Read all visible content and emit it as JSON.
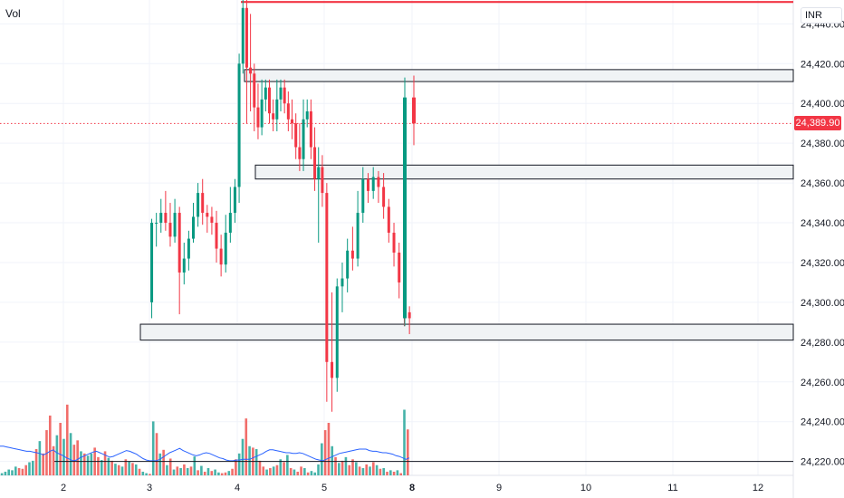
{
  "header": {
    "volume_label": "Vol",
    "currency_label": "INR"
  },
  "price_tag": {
    "value": "24,389.90",
    "color": "#f23645"
  },
  "colors": {
    "up": "#089981",
    "down": "#f23645",
    "vol_up": "#26a69a",
    "vol_down": "#ef5350",
    "ma": "#2962ff",
    "resistance": "#f23645",
    "zone_stroke": "#131722",
    "zone_fill": "#f0f3f5"
  },
  "chart_data": {
    "type": "candlestick",
    "x_tick_labels": [
      "2",
      "3",
      "4",
      "5",
      "8",
      "9",
      "10",
      "11",
      "12"
    ],
    "y_tick_labels": [
      "24,440.00",
      "24,420.00",
      "24,400.00",
      "24,380.00",
      "24,360.00",
      "24,340.00",
      "24,320.00",
      "24,300.00",
      "24,280.00",
      "24,260.00",
      "24,240.00",
      "24,220.00"
    ],
    "y_ticks": [
      24440,
      24420,
      24400,
      24380,
      24360,
      24340,
      24320,
      24300,
      24280,
      24260,
      24240,
      24220
    ],
    "ylim": [
      24213,
      24452
    ],
    "last_price": 24389.9,
    "resistance_level": 24451,
    "zones": [
      {
        "start_day": "4",
        "top": 24417,
        "bottom": 24411
      },
      {
        "start_day": "4",
        "top": 24369,
        "bottom": 24362
      },
      {
        "start_day": "3",
        "top": 24289,
        "bottom": 24281
      },
      {
        "start_day": "2",
        "top": 24220,
        "bottom": 24220
      }
    ],
    "candles": [
      [
        24300,
        24340,
        24292,
        24342
      ],
      [
        24340,
        24340,
        24328,
        24345
      ],
      [
        24340,
        24345,
        24335,
        24352
      ],
      [
        24345,
        24340,
        24336,
        24356
      ],
      [
        24340,
        24333,
        24328,
        24350
      ],
      [
        24333,
        24345,
        24330,
        24352
      ],
      [
        24345,
        24315,
        24294,
        24348
      ],
      [
        24315,
        24322,
        24309,
        24330
      ],
      [
        24322,
        24332,
        24316,
        24336
      ],
      [
        24332,
        24343,
        24330,
        24350
      ],
      [
        24343,
        24355,
        24338,
        24360
      ],
      [
        24355,
        24345,
        24339,
        24362
      ],
      [
        24345,
        24343,
        24335,
        24349
      ],
      [
        24343,
        24340,
        24334,
        24348
      ],
      [
        24340,
        24327,
        24320,
        24346
      ],
      [
        24327,
        24319,
        24313,
        24334
      ],
      [
        24319,
        24335,
        24315,
        24344
      ],
      [
        24335,
        24345,
        24330,
        24358
      ],
      [
        24345,
        24358,
        24340,
        24362
      ],
      [
        24358,
        24420,
        24350,
        24425
      ],
      [
        24420,
        24448,
        24415,
        24452
      ],
      [
        24448,
        24418,
        24390,
        24452
      ],
      [
        24418,
        24415,
        24396,
        24445
      ],
      [
        24415,
        24398,
        24386,
        24420
      ],
      [
        24398,
        24388,
        24382,
        24410
      ],
      [
        24388,
        24402,
        24384,
        24412
      ],
      [
        24402,
        24408,
        24396,
        24412
      ],
      [
        24408,
        24395,
        24390,
        24412
      ],
      [
        24395,
        24392,
        24386,
        24402
      ],
      [
        24392,
        24402,
        24386,
        24412
      ],
      [
        24402,
        24408,
        24396,
        24412
      ],
      [
        24408,
        24400,
        24395,
        24412
      ],
      [
        24400,
        24392,
        24386,
        24406
      ],
      [
        24392,
        24390,
        24382,
        24402
      ],
      [
        24390,
        24378,
        24372,
        24395
      ],
      [
        24378,
        24372,
        24366,
        24390
      ],
      [
        24372,
        24392,
        24366,
        24402
      ],
      [
        24392,
        24396,
        24388,
        24402
      ],
      [
        24396,
        24378,
        24372,
        24402
      ],
      [
        24378,
        24362,
        24356,
        24388
      ],
      [
        24362,
        24368,
        24330,
        24378
      ],
      [
        24368,
        24355,
        24348,
        24374
      ],
      [
        24355,
        24270,
        24250,
        24360
      ],
      [
        24270,
        24262,
        24245,
        24305
      ],
      [
        24262,
        24308,
        24255,
        24312
      ],
      [
        24308,
        24312,
        24295,
        24320
      ],
      [
        24312,
        24326,
        24305,
        24332
      ],
      [
        24326,
        24322,
        24316,
        24338
      ],
      [
        24322,
        24345,
        24318,
        24356
      ],
      [
        24345,
        24362,
        24340,
        24368
      ],
      [
        24362,
        24356,
        24350,
        24365
      ],
      [
        24356,
        24363,
        24352,
        24368
      ],
      [
        24363,
        24358,
        24350,
        24366
      ],
      [
        24358,
        24348,
        24342,
        24365
      ],
      [
        24348,
        24335,
        24330,
        24352
      ],
      [
        24335,
        24325,
        24318,
        24340
      ],
      [
        24325,
        24310,
        24302,
        24330
      ],
      [
        24310,
        24295,
        24288,
        24315
      ],
      [
        24295,
        24292,
        24284,
        24298
      ],
      [
        24292,
        24403,
        24288,
        24413
      ],
      [
        24403,
        24389.9,
        24379,
        24414
      ]
    ],
    "candle_days": [
      "3",
      "3",
      "3",
      "3",
      "3",
      "3",
      "3",
      "3",
      "3",
      "3",
      "3",
      "3",
      "3",
      "3",
      "3",
      "3",
      "3",
      "3",
      "3",
      "4",
      "4",
      "4",
      "4",
      "4",
      "4",
      "4",
      "4",
      "4",
      "4",
      "4",
      "4",
      "4",
      "4",
      "4",
      "4",
      "4",
      "4",
      "4",
      "4",
      "4",
      "4",
      "4",
      "5",
      "5",
      "5",
      "5",
      "5",
      "5",
      "5",
      "5",
      "5",
      "5",
      "5",
      "5",
      "5",
      "5",
      "5",
      "5",
      "5",
      "8",
      "8"
    ],
    "volumes": [
      [
        3,
        1
      ],
      [
        5,
        1
      ],
      [
        8,
        1
      ],
      [
        7,
        1
      ],
      [
        12,
        1
      ],
      [
        10,
        0
      ],
      [
        9,
        0
      ],
      [
        14,
        0
      ],
      [
        18,
        1
      ],
      [
        20,
        1
      ],
      [
        36,
        0
      ],
      [
        47,
        1
      ],
      [
        30,
        0
      ],
      [
        62,
        0
      ],
      [
        82,
        0
      ],
      [
        40,
        0
      ],
      [
        55,
        1
      ],
      [
        72,
        0
      ],
      [
        50,
        1
      ],
      [
        97,
        0
      ],
      [
        58,
        1
      ],
      [
        42,
        0
      ],
      [
        48,
        0
      ],
      [
        33,
        1
      ],
      [
        30,
        0
      ],
      [
        27,
        1
      ],
      [
        30,
        1
      ],
      [
        38,
        0
      ],
      [
        25,
        0
      ],
      [
        21,
        1
      ],
      [
        33,
        0
      ],
      [
        24,
        1
      ],
      [
        20,
        0
      ],
      [
        16,
        1
      ],
      [
        14,
        0
      ],
      [
        12,
        1
      ],
      [
        22,
        0
      ],
      [
        19,
        1
      ],
      [
        17,
        0
      ],
      [
        15,
        1
      ],
      [
        9,
        0
      ],
      [
        5,
        1
      ],
      [
        3,
        1
      ],
      [
        2,
        0
      ],
      [
        74,
        1
      ],
      [
        58,
        0
      ],
      [
        30,
        1
      ],
      [
        35,
        0
      ],
      [
        14,
        1
      ],
      [
        23,
        0
      ],
      [
        8,
        1
      ],
      [
        12,
        0
      ],
      [
        10,
        1
      ],
      [
        15,
        0
      ],
      [
        10,
        1
      ],
      [
        12,
        0
      ],
      [
        26,
        1
      ],
      [
        7,
        0
      ],
      [
        13,
        1
      ],
      [
        5,
        0
      ],
      [
        10,
        1
      ],
      [
        6,
        0
      ],
      [
        8,
        1
      ],
      [
        4,
        1
      ],
      [
        3,
        0
      ],
      [
        4,
        0
      ],
      [
        6,
        1
      ],
      [
        9,
        0
      ],
      [
        22,
        0
      ],
      [
        30,
        1
      ],
      [
        50,
        1
      ],
      [
        78,
        0
      ],
      [
        40,
        1
      ],
      [
        38,
        0
      ],
      [
        36,
        1
      ],
      [
        20,
        0
      ],
      [
        12,
        0
      ],
      [
        8,
        1
      ],
      [
        10,
        0
      ],
      [
        12,
        1
      ],
      [
        14,
        0
      ],
      [
        22,
        1
      ],
      [
        18,
        0
      ],
      [
        28,
        1
      ],
      [
        10,
        0
      ],
      [
        8,
        1
      ],
      [
        5,
        0
      ],
      [
        12,
        0
      ],
      [
        10,
        1
      ],
      [
        4,
        0
      ],
      [
        6,
        1
      ],
      [
        4,
        1
      ],
      [
        15,
        1
      ],
      [
        44,
        1
      ],
      [
        62,
        0
      ],
      [
        72,
        0
      ],
      [
        40,
        1
      ],
      [
        25,
        0
      ],
      [
        17,
        1
      ],
      [
        20,
        0
      ],
      [
        25,
        1
      ],
      [
        14,
        0
      ],
      [
        22,
        0
      ],
      [
        18,
        1
      ],
      [
        12,
        0
      ],
      [
        10,
        1
      ],
      [
        15,
        0
      ],
      [
        12,
        1
      ],
      [
        18,
        0
      ],
      [
        14,
        1
      ],
      [
        9,
        0
      ],
      [
        10,
        1
      ],
      [
        5,
        0
      ],
      [
        7,
        1
      ],
      [
        5,
        0
      ],
      [
        7,
        1
      ],
      [
        3,
        0
      ],
      [
        90,
        1
      ],
      [
        63,
        0
      ]
    ],
    "vol_max": 180,
    "ma_values": [
      40,
      40,
      39,
      38,
      37,
      36,
      35,
      34,
      33,
      33,
      32,
      31,
      30,
      28,
      30,
      33,
      35,
      31,
      29,
      27,
      24,
      22,
      20,
      21,
      24,
      26,
      28,
      30,
      32,
      33,
      31,
      29,
      27,
      25,
      26,
      28,
      30,
      32,
      34,
      33,
      31,
      29,
      26,
      23,
      21,
      20,
      20,
      20,
      22,
      25,
      28,
      31,
      33,
      35,
      37,
      34,
      32,
      30,
      28,
      27,
      28,
      30,
      31,
      30,
      28,
      26,
      24,
      23,
      21,
      20,
      20,
      21,
      21,
      22,
      22,
      22,
      24,
      26,
      28,
      30,
      33,
      35,
      35,
      34,
      33,
      32,
      31,
      31,
      30,
      30,
      31,
      30,
      28,
      26,
      24,
      22,
      21,
      20,
      22,
      24,
      26,
      28,
      30,
      31,
      32,
      33,
      34,
      35,
      36,
      36,
      36,
      34,
      33,
      33,
      32,
      31,
      31,
      30,
      29,
      27,
      26,
      24,
      22,
      24
    ]
  }
}
